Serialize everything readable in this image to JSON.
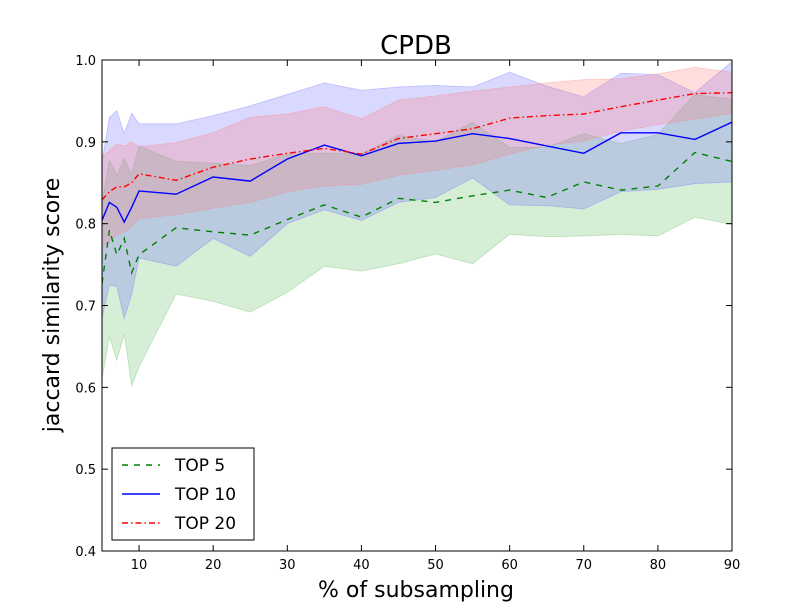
{
  "chart_data": {
    "type": "line",
    "title": "CPDB",
    "xlabel": "% of subsampling",
    "ylabel": "jaccard similarity score",
    "xlim": [
      5,
      90
    ],
    "ylim": [
      0.4,
      1.0
    ],
    "xticks": [
      10,
      20,
      30,
      40,
      50,
      60,
      70,
      80,
      90
    ],
    "yticks": [
      0.4,
      0.5,
      0.6,
      0.7,
      0.8,
      0.9,
      1.0
    ],
    "ytick_labels": [
      "0.4",
      "0.5",
      "0.6",
      "0.7",
      "0.8",
      "0.9",
      "1.0"
    ],
    "grid": false,
    "legend_position": "lower-left",
    "x": [
      5,
      6,
      7,
      8,
      9,
      10,
      15,
      20,
      25,
      30,
      35,
      40,
      45,
      50,
      55,
      60,
      65,
      70,
      75,
      80,
      85,
      90
    ],
    "series": [
      {
        "name": "TOP 5",
        "color": "#008000",
        "band_color": "#5cb85c",
        "linestyle": "dashed",
        "values": [
          0.727,
          0.792,
          0.762,
          0.782,
          0.74,
          0.762,
          0.795,
          0.79,
          0.786,
          0.805,
          0.823,
          0.808,
          0.831,
          0.826,
          0.834,
          0.841,
          0.832,
          0.851,
          0.841,
          0.846,
          0.887,
          0.876
        ],
        "lower": [
          0.61,
          0.662,
          0.633,
          0.665,
          0.602,
          0.625,
          0.714,
          0.705,
          0.692,
          0.716,
          0.748,
          0.742,
          0.751,
          0.763,
          0.751,
          0.787,
          0.784,
          0.785,
          0.787,
          0.785,
          0.808,
          0.799
        ],
        "upper": [
          0.825,
          0.877,
          0.859,
          0.88,
          0.86,
          0.895,
          0.876,
          0.874,
          0.871,
          0.885,
          0.886,
          0.885,
          0.908,
          0.9,
          0.924,
          0.893,
          0.893,
          0.91,
          0.898,
          0.909,
          0.958,
          0.952
        ]
      },
      {
        "name": "TOP 10",
        "color": "#0000ff",
        "band_color": "#6666ff",
        "linestyle": "solid",
        "values": [
          0.804,
          0.826,
          0.82,
          0.802,
          0.82,
          0.84,
          0.836,
          0.857,
          0.852,
          0.879,
          0.896,
          0.883,
          0.898,
          0.901,
          0.91,
          0.904,
          0.895,
          0.886,
          0.911,
          0.911,
          0.903,
          0.924
        ],
        "lower": [
          0.685,
          0.725,
          0.723,
          0.684,
          0.714,
          0.758,
          0.748,
          0.782,
          0.76,
          0.8,
          0.817,
          0.804,
          0.826,
          0.832,
          0.856,
          0.823,
          0.822,
          0.818,
          0.839,
          0.842,
          0.849,
          0.851
        ],
        "upper": [
          0.875,
          0.93,
          0.938,
          0.91,
          0.935,
          0.922,
          0.922,
          0.932,
          0.944,
          0.958,
          0.972,
          0.963,
          0.967,
          0.969,
          0.967,
          0.985,
          0.968,
          0.955,
          0.984,
          0.982,
          0.96,
          0.998
        ]
      },
      {
        "name": "TOP 20",
        "color": "#ff0000",
        "band_color": "#ff7777",
        "linestyle": "dashdot",
        "values": [
          0.829,
          0.839,
          0.845,
          0.845,
          0.85,
          0.861,
          0.853,
          0.869,
          0.879,
          0.886,
          0.892,
          0.885,
          0.904,
          0.91,
          0.916,
          0.929,
          0.932,
          0.934,
          0.943,
          0.951,
          0.959,
          0.96
        ],
        "lower": [
          0.772,
          0.778,
          0.787,
          0.79,
          0.796,
          0.806,
          0.811,
          0.819,
          0.826,
          0.839,
          0.846,
          0.848,
          0.859,
          0.865,
          0.872,
          0.885,
          0.896,
          0.901,
          0.913,
          0.921,
          0.928,
          0.935
        ],
        "upper": [
          0.882,
          0.889,
          0.897,
          0.895,
          0.9,
          0.894,
          0.899,
          0.911,
          0.93,
          0.934,
          0.943,
          0.928,
          0.951,
          0.956,
          0.962,
          0.967,
          0.972,
          0.976,
          0.977,
          0.983,
          0.991,
          0.985
        ]
      }
    ]
  }
}
